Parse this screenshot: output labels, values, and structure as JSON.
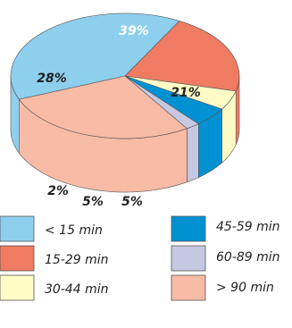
{
  "chart_data": {
    "type": "pie",
    "title": "",
    "slices": [
      {
        "label": "< 15 min",
        "value": 39,
        "display": "39%",
        "color": "#8ecfee"
      },
      {
        "label": "15-29 min",
        "value": 21,
        "display": "21%",
        "color": "#ee7b62"
      },
      {
        "label": "30-44 min",
        "value": 5,
        "display": "5%",
        "color": "#fdfbc6"
      },
      {
        "label": "45-59 min",
        "value": 5,
        "display": "5%",
        "color": "#0091d2"
      },
      {
        "label": "60-89 min",
        "value": 2,
        "display": "2%",
        "color": "#c6c8e2"
      },
      {
        "label": "> 90 min",
        "value": 28,
        "display": "28%",
        "color": "#f8bba6"
      }
    ],
    "legend_position": "bottom"
  }
}
